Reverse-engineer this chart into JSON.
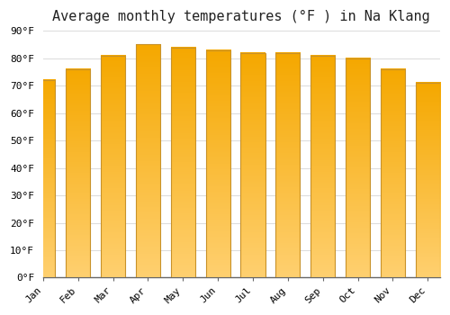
{
  "title": "Average monthly temperatures (°F ) in Na Klang",
  "months": [
    "Jan",
    "Feb",
    "Mar",
    "Apr",
    "May",
    "Jun",
    "Jul",
    "Aug",
    "Sep",
    "Oct",
    "Nov",
    "Dec"
  ],
  "values": [
    72,
    76,
    81,
    85,
    84,
    83,
    82,
    82,
    81,
    80,
    76,
    71
  ],
  "bar_color_top": "#F5A800",
  "bar_color_bottom": "#FFD070",
  "bar_edge_color": "#C8922A",
  "background_color": "#FFFFFF",
  "plot_bg_color": "#FFFFFF",
  "grid_color": "#DDDDDD",
  "ylim": [
    0,
    90
  ],
  "yticks": [
    0,
    10,
    20,
    30,
    40,
    50,
    60,
    70,
    80,
    90
  ],
  "title_fontsize": 11,
  "tick_fontsize": 8,
  "figsize": [
    5.0,
    3.5
  ],
  "dpi": 100
}
